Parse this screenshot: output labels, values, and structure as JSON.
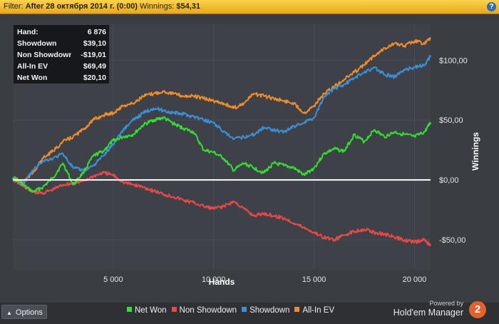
{
  "filter": {
    "prefix": "Filter:",
    "value": "After 28 октября 2014 г. (0:00)",
    "winnings_label": "Winnings:",
    "winnings_value": "$54,31"
  },
  "help_label": "?",
  "stats": [
    {
      "label": "Hand:",
      "value": "6 876"
    },
    {
      "label": "Showdown",
      "value": "$39,10"
    },
    {
      "label": "Non Showdown",
      "value": "-$19,01"
    },
    {
      "label": "All-In EV",
      "value": "$69,49"
    },
    {
      "label": "Net Won",
      "value": "$20,10"
    }
  ],
  "options_label": "Options",
  "brand": {
    "powered": "Powered by",
    "name": "Hold'em Manager",
    "logo_text": "2",
    "logo_color": "#e2622a"
  },
  "chart_data": {
    "type": "line",
    "xlabel": "Hands",
    "ylabel": "Winnings",
    "xlim": [
      0,
      20800
    ],
    "ylim": [
      -75,
      130
    ],
    "x_ticks": [
      {
        "value": 5000,
        "label": "5 000"
      },
      {
        "value": 10000,
        "label": "10 000"
      },
      {
        "value": 15000,
        "label": "15 000"
      },
      {
        "value": 20000,
        "label": "20 000"
      }
    ],
    "y_ticks": [
      {
        "value": 100,
        "label": "$100,00"
      },
      {
        "value": 50,
        "label": "$50,00"
      },
      {
        "value": 0,
        "label": "$0,00"
      },
      {
        "value": -50,
        "label": "-$50,00"
      }
    ],
    "grid": true,
    "zero_line": true,
    "legend_position": "bottom",
    "series": [
      {
        "name": "Net Won",
        "color": "#33dd33",
        "x": [
          0,
          500,
          1000,
          1500,
          2000,
          2500,
          3000,
          3500,
          4000,
          4500,
          5000,
          5500,
          6000,
          6500,
          7000,
          7500,
          8000,
          8500,
          9000,
          9500,
          10000,
          10500,
          11000,
          11500,
          12000,
          12500,
          13000,
          13500,
          14000,
          14500,
          15000,
          15500,
          16000,
          16500,
          17000,
          17500,
          18000,
          18500,
          19000,
          19500,
          20000,
          20500,
          20800
        ],
        "y": [
          2,
          -4,
          -10,
          -6,
          2,
          14,
          -4,
          6,
          20,
          24,
          33,
          36,
          38,
          46,
          50,
          52,
          47,
          43,
          40,
          25,
          23,
          18,
          8,
          14,
          10,
          6,
          14,
          12,
          10,
          4,
          10,
          22,
          26,
          24,
          38,
          32,
          42,
          36,
          40,
          38,
          36,
          40,
          48
        ]
      },
      {
        "name": "Non Showdown",
        "color": "#e84848",
        "x": [
          0,
          500,
          1000,
          1500,
          2000,
          2500,
          3000,
          3500,
          4000,
          4500,
          5000,
          5500,
          6000,
          6500,
          7000,
          7500,
          8000,
          8500,
          9000,
          9500,
          10000,
          10500,
          11000,
          11500,
          12000,
          12500,
          13000,
          13500,
          14000,
          14500,
          15000,
          15500,
          16000,
          16500,
          17000,
          17500,
          18000,
          18500,
          19000,
          19500,
          20000,
          20500,
          20800
        ],
        "y": [
          0,
          -5,
          -10,
          -11,
          -8,
          -4,
          -3,
          -1,
          3,
          6,
          4,
          -2,
          -4,
          -6,
          -9,
          -12,
          -14,
          -17,
          -19,
          -22,
          -24,
          -22,
          -18,
          -24,
          -30,
          -28,
          -30,
          -32,
          -36,
          -40,
          -44,
          -48,
          -50,
          -46,
          -43,
          -41,
          -44,
          -45,
          -48,
          -50,
          -52,
          -50,
          -55
        ]
      },
      {
        "name": "Showdown",
        "color": "#3a8fd6",
        "x": [
          0,
          500,
          1000,
          1500,
          2000,
          2500,
          3000,
          3500,
          4000,
          4500,
          5000,
          5500,
          6000,
          6500,
          7000,
          7500,
          8000,
          8500,
          9000,
          9500,
          10000,
          10500,
          11000,
          11500,
          12000,
          12500,
          13000,
          13500,
          14000,
          14500,
          15000,
          15500,
          16000,
          16500,
          17000,
          17500,
          18000,
          18500,
          19000,
          19500,
          20000,
          20500,
          20800
        ],
        "y": [
          2,
          -4,
          8,
          16,
          18,
          22,
          10,
          8,
          12,
          20,
          30,
          42,
          50,
          56,
          60,
          58,
          56,
          55,
          53,
          50,
          48,
          40,
          34,
          36,
          38,
          44,
          42,
          40,
          45,
          48,
          52,
          70,
          76,
          80,
          85,
          90,
          94,
          88,
          86,
          92,
          94,
          96,
          104
        ]
      },
      {
        "name": "All-In EV",
        "color": "#f08c2a",
        "x": [
          0,
          500,
          1000,
          1500,
          2000,
          2500,
          3000,
          3500,
          4000,
          4500,
          5000,
          5500,
          6000,
          6500,
          7000,
          7500,
          8000,
          8500,
          9000,
          9500,
          10000,
          10500,
          11000,
          11500,
          12000,
          12500,
          13000,
          13500,
          14000,
          14500,
          15000,
          15500,
          16000,
          16500,
          17000,
          17500,
          18000,
          18500,
          19000,
          19500,
          20000,
          20500,
          20800
        ],
        "y": [
          2,
          -2,
          6,
          18,
          24,
          32,
          36,
          42,
          50,
          54,
          56,
          62,
          64,
          70,
          72,
          74,
          72,
          70,
          70,
          68,
          66,
          64,
          60,
          64,
          72,
          70,
          68,
          66,
          64,
          56,
          62,
          72,
          78,
          84,
          90,
          96,
          104,
          110,
          114,
          112,
          116,
          114,
          118
        ]
      }
    ]
  }
}
